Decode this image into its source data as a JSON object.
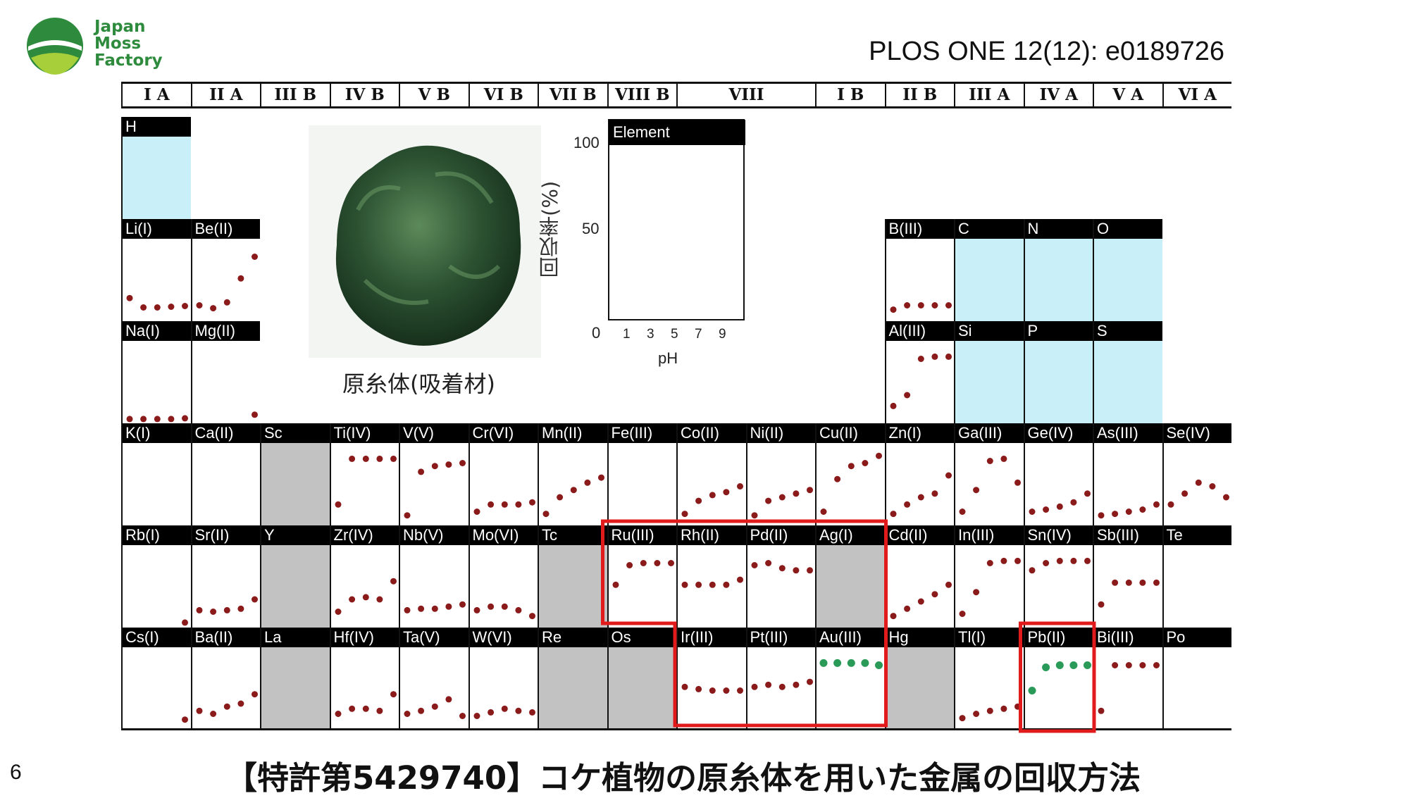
{
  "logo": {
    "line1": "Japan",
    "line2": "Moss",
    "line3": "Factory"
  },
  "citation": "PLOS ONE 12(12): e0189726",
  "groups": [
    "I A",
    "II A",
    "III B",
    "IV B",
    "V B",
    "VI B",
    "VII B",
    "VIII B",
    "VIII",
    "I B",
    "II B",
    "III A",
    "IV A",
    "V A",
    "VI A"
  ],
  "legend": {
    "title": "Element",
    "y_axis_label": "回収率(%)",
    "y_ticks": [
      "100",
      "50",
      "0"
    ],
    "x_ticks": [
      "1",
      "3",
      "5",
      "7",
      "9"
    ],
    "x_axis_label": "pH"
  },
  "moss_caption": "原糸体(吸着材)",
  "elements": [
    {
      "label": "H",
      "col": 0,
      "row": 0,
      "type": "light"
    },
    {
      "label": "Li(I)",
      "col": 0,
      "row": 1,
      "type": "data",
      "points": [
        [
          1,
          28
        ],
        [
          3,
          15
        ],
        [
          5,
          15
        ],
        [
          7,
          16
        ],
        [
          9,
          17
        ]
      ]
    },
    {
      "label": "Be(II)",
      "col": 1,
      "row": 1,
      "type": "data",
      "points": [
        [
          1,
          18
        ],
        [
          3,
          14
        ],
        [
          5,
          22
        ],
        [
          7,
          55
        ],
        [
          9,
          85
        ]
      ]
    },
    {
      "label": "B(III)",
      "col": 11,
      "row": 1,
      "type": "data",
      "points": [
        [
          1,
          12
        ],
        [
          3,
          18
        ],
        [
          5,
          18
        ],
        [
          7,
          18
        ],
        [
          9,
          18
        ]
      ]
    },
    {
      "label": "C",
      "col": 12,
      "row": 1,
      "type": "light"
    },
    {
      "label": "N",
      "col": 13,
      "row": 1,
      "type": "light"
    },
    {
      "label": "O",
      "col": 14,
      "row": 1,
      "type": "light"
    },
    {
      "label": "Na(I)",
      "col": 0,
      "row": 2,
      "type": "data",
      "points": [
        [
          1,
          2
        ],
        [
          3,
          2
        ],
        [
          5,
          2
        ],
        [
          7,
          2
        ],
        [
          9,
          3
        ]
      ]
    },
    {
      "label": "Mg(II)",
      "col": 1,
      "row": 2,
      "type": "data",
      "points": [
        [
          9,
          8
        ]
      ]
    },
    {
      "label": "Al(III)",
      "col": 11,
      "row": 2,
      "type": "data",
      "points": [
        [
          1,
          20
        ],
        [
          3,
          35
        ],
        [
          5,
          85
        ],
        [
          7,
          88
        ],
        [
          9,
          88
        ]
      ]
    },
    {
      "label": "Si",
      "col": 12,
      "row": 2,
      "type": "light"
    },
    {
      "label": "P",
      "col": 13,
      "row": 2,
      "type": "light"
    },
    {
      "label": "S",
      "col": 14,
      "row": 2,
      "type": "light"
    },
    {
      "label": "K(I)",
      "col": 0,
      "row": 3,
      "type": "empty"
    },
    {
      "label": "Ca(II)",
      "col": 1,
      "row": 3,
      "type": "empty"
    },
    {
      "label": "Sc",
      "col": 2,
      "row": 3,
      "type": "grey"
    },
    {
      "label": "Ti(IV)",
      "col": 3,
      "row": 3,
      "type": "data",
      "points": [
        [
          1,
          25
        ],
        [
          3,
          88
        ],
        [
          5,
          88
        ],
        [
          7,
          88
        ],
        [
          9,
          88
        ]
      ]
    },
    {
      "label": "V(V)",
      "col": 4,
      "row": 3,
      "type": "data",
      "points": [
        [
          1,
          10
        ],
        [
          3,
          70
        ],
        [
          5,
          78
        ],
        [
          7,
          80
        ],
        [
          9,
          82
        ]
      ]
    },
    {
      "label": "Cr(VI)",
      "col": 5,
      "row": 3,
      "type": "data",
      "points": [
        [
          1,
          15
        ],
        [
          3,
          25
        ],
        [
          5,
          25
        ],
        [
          7,
          25
        ],
        [
          9,
          28
        ]
      ]
    },
    {
      "label": "Mn(II)",
      "col": 6,
      "row": 3,
      "type": "data",
      "points": [
        [
          1,
          12
        ],
        [
          3,
          35
        ],
        [
          5,
          45
        ],
        [
          7,
          55
        ],
        [
          9,
          62
        ]
      ]
    },
    {
      "label": "Fe(III)",
      "col": 7,
      "row": 3,
      "type": "empty"
    },
    {
      "label": "Co(II)",
      "col": 8,
      "row": 3,
      "type": "data",
      "points": [
        [
          1,
          12
        ],
        [
          3,
          30
        ],
        [
          5,
          38
        ],
        [
          7,
          42
        ],
        [
          9,
          50
        ]
      ]
    },
    {
      "label": "Ni(II)",
      "col": 9,
      "row": 3,
      "type": "data",
      "points": [
        [
          1,
          10
        ],
        [
          3,
          30
        ],
        [
          5,
          35
        ],
        [
          7,
          40
        ],
        [
          9,
          45
        ]
      ]
    },
    {
      "label": "Cu(II)",
      "col": 10,
      "row": 3,
      "type": "data",
      "points": [
        [
          1,
          15
        ],
        [
          3,
          60
        ],
        [
          5,
          78
        ],
        [
          7,
          82
        ],
        [
          9,
          92
        ]
      ]
    },
    {
      "label": "Zn(I)",
      "col": 11,
      "row": 3,
      "type": "data",
      "points": [
        [
          1,
          12
        ],
        [
          3,
          25
        ],
        [
          5,
          35
        ],
        [
          7,
          40
        ],
        [
          9,
          65
        ]
      ]
    },
    {
      "label": "Ga(III)",
      "col": 12,
      "row": 3,
      "type": "data",
      "points": [
        [
          1,
          15
        ],
        [
          3,
          45
        ],
        [
          5,
          85
        ],
        [
          7,
          88
        ],
        [
          9,
          55
        ]
      ]
    },
    {
      "label": "Ge(IV)",
      "col": 13,
      "row": 3,
      "type": "data",
      "points": [
        [
          1,
          15
        ],
        [
          3,
          18
        ],
        [
          5,
          22
        ],
        [
          7,
          28
        ],
        [
          9,
          40
        ]
      ]
    },
    {
      "label": "As(III)",
      "col": 14,
      "row": 3,
      "type": "data",
      "points": [
        [
          1,
          10
        ],
        [
          3,
          12
        ],
        [
          5,
          15
        ],
        [
          7,
          18
        ],
        [
          9,
          25
        ]
      ]
    },
    {
      "label": "Se(IV)",
      "col": 15,
      "row": 3,
      "type": "data",
      "points": [
        [
          1,
          25
        ],
        [
          3,
          40
        ],
        [
          5,
          55
        ],
        [
          7,
          50
        ],
        [
          9,
          35
        ]
      ]
    },
    {
      "label": "Rb(I)",
      "col": 0,
      "row": 4,
      "type": "data",
      "points": [
        [
          9,
          3
        ]
      ]
    },
    {
      "label": "Sr(II)",
      "col": 1,
      "row": 4,
      "type": "data",
      "points": [
        [
          1,
          20
        ],
        [
          3,
          18
        ],
        [
          5,
          20
        ],
        [
          7,
          22
        ],
        [
          9,
          35
        ]
      ]
    },
    {
      "label": "Y",
      "col": 2,
      "row": 4,
      "type": "grey"
    },
    {
      "label": "Zr(IV)",
      "col": 3,
      "row": 4,
      "type": "data",
      "points": [
        [
          1,
          18
        ],
        [
          3,
          35
        ],
        [
          5,
          38
        ],
        [
          7,
          35
        ],
        [
          9,
          60
        ]
      ]
    },
    {
      "label": "Nb(V)",
      "col": 4,
      "row": 4,
      "type": "data",
      "points": [
        [
          1,
          20
        ],
        [
          3,
          22
        ],
        [
          5,
          22
        ],
        [
          7,
          25
        ],
        [
          9,
          28
        ]
      ]
    },
    {
      "label": "Mo(VI)",
      "col": 5,
      "row": 4,
      "type": "data",
      "points": [
        [
          1,
          20
        ],
        [
          3,
          25
        ],
        [
          5,
          25
        ],
        [
          7,
          20
        ],
        [
          9,
          12
        ]
      ]
    },
    {
      "label": "Tc",
      "col": 6,
      "row": 4,
      "type": "grey"
    },
    {
      "label": "Ru(III)",
      "col": 7,
      "row": 4,
      "type": "data",
      "points": [
        [
          1,
          55
        ],
        [
          3,
          82
        ],
        [
          5,
          85
        ],
        [
          7,
          85
        ],
        [
          9,
          85
        ]
      ]
    },
    {
      "label": "Rh(II)",
      "col": 8,
      "row": 4,
      "type": "data",
      "points": [
        [
          1,
          55
        ],
        [
          3,
          55
        ],
        [
          5,
          55
        ],
        [
          7,
          55
        ],
        [
          9,
          62
        ]
      ]
    },
    {
      "label": "Pd(II)",
      "col": 9,
      "row": 4,
      "type": "data",
      "points": [
        [
          1,
          82
        ],
        [
          3,
          85
        ],
        [
          5,
          78
        ],
        [
          7,
          75
        ],
        [
          9,
          75
        ]
      ]
    },
    {
      "label": "Ag(I)",
      "col": 10,
      "row": 4,
      "type": "grey"
    },
    {
      "label": "Cd(II)",
      "col": 11,
      "row": 4,
      "type": "data",
      "points": [
        [
          1,
          12
        ],
        [
          3,
          22
        ],
        [
          5,
          32
        ],
        [
          7,
          42
        ],
        [
          9,
          55
        ]
      ]
    },
    {
      "label": "In(III)",
      "col": 12,
      "row": 4,
      "type": "data",
      "points": [
        [
          1,
          15
        ],
        [
          3,
          45
        ],
        [
          5,
          85
        ],
        [
          7,
          88
        ],
        [
          9,
          88
        ]
      ]
    },
    {
      "label": "Sn(IV)",
      "col": 13,
      "row": 4,
      "type": "data",
      "points": [
        [
          1,
          75
        ],
        [
          3,
          85
        ],
        [
          5,
          88
        ],
        [
          7,
          88
        ],
        [
          9,
          88
        ]
      ]
    },
    {
      "label": "Sb(III)",
      "col": 14,
      "row": 4,
      "type": "data",
      "points": [
        [
          1,
          28
        ],
        [
          3,
          58
        ],
        [
          5,
          58
        ],
        [
          7,
          58
        ],
        [
          9,
          58
        ]
      ]
    },
    {
      "label": "Te",
      "col": 15,
      "row": 4,
      "type": "empty"
    },
    {
      "label": "Cs(I)",
      "col": 0,
      "row": 5,
      "type": "data",
      "points": [
        [
          9,
          10
        ]
      ]
    },
    {
      "label": "Ba(II)",
      "col": 1,
      "row": 5,
      "type": "data",
      "points": [
        [
          1,
          22
        ],
        [
          3,
          18
        ],
        [
          5,
          28
        ],
        [
          7,
          32
        ],
        [
          9,
          45
        ]
      ]
    },
    {
      "label": "La",
      "col": 2,
      "row": 5,
      "type": "grey"
    },
    {
      "label": "Hf(IV)",
      "col": 3,
      "row": 5,
      "type": "data",
      "points": [
        [
          1,
          18
        ],
        [
          3,
          25
        ],
        [
          5,
          25
        ],
        [
          7,
          22
        ],
        [
          9,
          45
        ]
      ]
    },
    {
      "label": "Ta(V)",
      "col": 4,
      "row": 5,
      "type": "data",
      "points": [
        [
          1,
          18
        ],
        [
          3,
          22
        ],
        [
          5,
          28
        ],
        [
          7,
          38
        ],
        [
          9,
          15
        ]
      ]
    },
    {
      "label": "W(VI)",
      "col": 5,
      "row": 5,
      "type": "data",
      "points": [
        [
          1,
          15
        ],
        [
          3,
          20
        ],
        [
          5,
          25
        ],
        [
          7,
          22
        ],
        [
          9,
          20
        ]
      ]
    },
    {
      "label": "Re",
      "col": 6,
      "row": 5,
      "type": "grey"
    },
    {
      "label": "Os",
      "col": 7,
      "row": 5,
      "type": "grey"
    },
    {
      "label": "Ir(III)",
      "col": 8,
      "row": 5,
      "type": "data",
      "points": [
        [
          1,
          55
        ],
        [
          3,
          52
        ],
        [
          5,
          50
        ],
        [
          7,
          50
        ],
        [
          9,
          50
        ]
      ]
    },
    {
      "label": "Pt(III)",
      "col": 9,
      "row": 5,
      "type": "data",
      "points": [
        [
          1,
          55
        ],
        [
          3,
          58
        ],
        [
          5,
          55
        ],
        [
          7,
          58
        ],
        [
          9,
          62
        ]
      ]
    },
    {
      "label": "Au(III)",
      "col": 10,
      "row": 5,
      "type": "data",
      "color": "green",
      "points": [
        [
          1,
          88
        ],
        [
          3,
          88
        ],
        [
          5,
          88
        ],
        [
          7,
          88
        ],
        [
          9,
          85
        ]
      ]
    },
    {
      "label": "Hg",
      "col": 11,
      "row": 5,
      "type": "grey"
    },
    {
      "label": "Tl(I)",
      "col": 12,
      "row": 5,
      "type": "data",
      "points": [
        [
          1,
          12
        ],
        [
          3,
          18
        ],
        [
          5,
          22
        ],
        [
          7,
          25
        ],
        [
          9,
          28
        ]
      ]
    },
    {
      "label": "Pb(II)",
      "col": 13,
      "row": 5,
      "type": "data",
      "color": "green",
      "points": [
        [
          1,
          50
        ],
        [
          3,
          82
        ],
        [
          5,
          85
        ],
        [
          7,
          85
        ],
        [
          9,
          85
        ]
      ]
    },
    {
      "label": "Bi(III)",
      "col": 14,
      "row": 5,
      "type": "data",
      "points": [
        [
          1,
          22
        ],
        [
          3,
          85
        ],
        [
          5,
          85
        ],
        [
          7,
          85
        ],
        [
          9,
          85
        ]
      ]
    },
    {
      "label": "Po",
      "col": 15,
      "row": 5,
      "type": "empty"
    }
  ],
  "colors": {
    "point": "#8b1a1a",
    "point_green": "#2a9a58",
    "highlight": "#e11b1b",
    "light_cell": "#c9eff8",
    "grey_cell": "#c2c2c2"
  },
  "page_number": "6",
  "footer_title": "【特許第5429740】コケ植物の原糸体を用いた金属の回収方法"
}
